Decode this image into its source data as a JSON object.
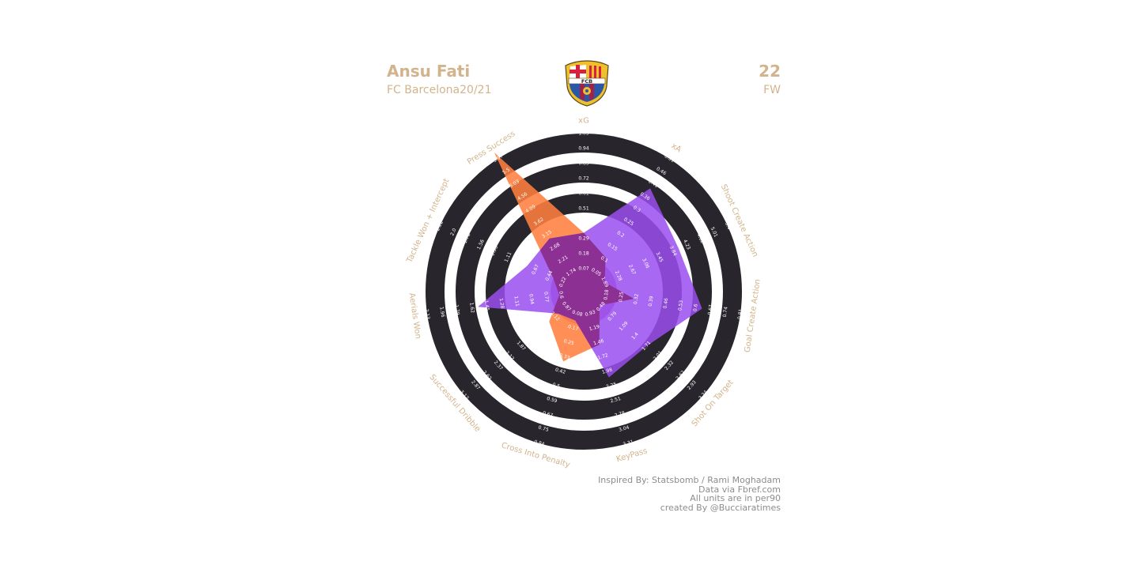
{
  "header": {
    "player_name": "Ansu Fati",
    "club_season": "FC Barcelona20/21",
    "jersey_number": "22",
    "position": "FW"
  },
  "crest": {
    "monogram": "FCB"
  },
  "credits": [
    "Inspired By: Statsbomb / Rami Moghadam",
    "Data via Fbref.com",
    "All units are in per90",
    "created By @Bucciaratimes"
  ],
  "colors": {
    "label": "#d2b48c",
    "ring_dark": "#28252c",
    "series_a": "#ff7f3f",
    "series_b": "#9a4ef0",
    "overlap": "#8a2c8c",
    "center_fill": "#b45cb4",
    "credits": "#8d8d8d"
  },
  "chart_data": {
    "type": "radar",
    "parameters": [
      "xG",
      "xA",
      "Shoot Create Action",
      "Goal Create Action",
      "Shot On Target",
      "KeyPass",
      "Cross Into Penalty",
      "Successful Dribble",
      "Aerials Won",
      "Tackle Won + Intercept",
      "Press Success"
    ],
    "tick_labels": [
      [
        "0.07",
        "0.18",
        "0.29",
        "0.4",
        "0.51",
        "0.61",
        "0.72",
        "0.83",
        "0.94",
        "1.05"
      ],
      [
        "0.05",
        "0.1",
        "0.15",
        "0.2",
        "0.25",
        "0.3",
        "0.36",
        "0.41",
        "0.46",
        "0.51"
      ],
      [
        "1.89",
        "2.28",
        "2.67",
        "3.06",
        "3.45",
        "3.84",
        "4.23",
        "4.62",
        "5.01",
        "5.4"
      ],
      [
        "0.18",
        "0.25",
        "0.32",
        "0.39",
        "0.46",
        "0.53",
        "0.6",
        "0.67",
        "0.74",
        "0.81"
      ],
      [
        "0.48",
        "0.79",
        "1.09",
        "1.4",
        "1.71",
        "2.01",
        "2.32",
        "2.62",
        "2.93",
        "3.24"
      ],
      [
        "0.93",
        "1.19",
        "1.46",
        "1.72",
        "1.98",
        "2.25",
        "2.51",
        "2.78",
        "3.04",
        "3.31"
      ],
      [
        "0.08",
        "0.17",
        "0.25",
        "0.33",
        "0.42",
        "0.5",
        "0.59",
        "0.67",
        "0.75",
        "0.84"
      ],
      [
        "0.87",
        "1.12",
        "1.37",
        "1.62",
        "1.87",
        "2.12",
        "2.37",
        "2.62",
        "2.87",
        "3.12"
      ],
      [
        "0.6",
        "0.77",
        "0.94",
        "1.11",
        "1.28",
        "1.45",
        "1.62",
        "1.79",
        "1.96",
        "2.13"
      ],
      [
        "0.22",
        "0.44",
        "0.67",
        "0.89",
        "1.11",
        "1.33",
        "1.56",
        "1.78",
        "2.0",
        "2.22"
      ],
      [
        "1.74",
        "2.21",
        "2.68",
        "3.15",
        "3.62",
        "4.09",
        "4.56",
        "5.03",
        "5.5",
        "5.97"
      ]
    ],
    "series": [
      {
        "values": [
          0.33,
          0.11,
          1.89,
          0.31,
          0.44,
          1.5,
          0.36,
          1.25,
          0.62,
          0.38,
          6.2
        ]
      },
      {
        "values": [
          0.33,
          0.39,
          4.0,
          0.63,
          1.71,
          2.1,
          0.12,
          1.05,
          1.55,
          0.8,
          3.0
        ]
      }
    ]
  }
}
